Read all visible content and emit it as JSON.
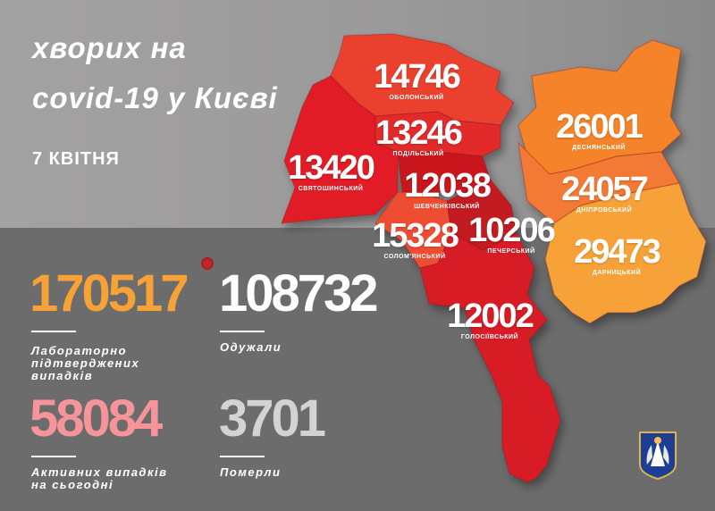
{
  "header": {
    "title_line1": "хворих на",
    "title_line2": "covid-19 у Києві",
    "date": "7 КВІТНЯ"
  },
  "districts": [
    {
      "name": "ОБОЛОНСЬКИЙ",
      "cases": "14746",
      "color": "#ea3f2e"
    },
    {
      "name": "ПОДІЛЬСЬКИЙ",
      "cases": "13246",
      "color": "#e32a2a"
    },
    {
      "name": "СВЯТОШИНСЬКИЙ",
      "cases": "13420",
      "color": "#e11f26"
    },
    {
      "name": "ШЕВЧЕНКІВСЬКИЙ",
      "cases": "12038",
      "color": "#c9161f"
    },
    {
      "name": "СОЛОМ'ЯНСЬКИЙ",
      "cases": "15328",
      "color": "#ee4d31"
    },
    {
      "name": "ПЕЧЕРСЬКИЙ",
      "cases": "10206",
      "color": "#c21b22"
    },
    {
      "name": "ГОЛОСІЇВСЬКИЙ",
      "cases": "12002",
      "color": "#d81e26"
    },
    {
      "name": "ДЕСНЯНСЬКИЙ",
      "cases": "26001",
      "color": "#f5832b"
    },
    {
      "name": "ДНІПРОВСЬКИЙ",
      "cases": "24057",
      "color": "#f27a34"
    },
    {
      "name": "ДАРНИЦЬКИЙ",
      "cases": "29473",
      "color": "#f7a237"
    }
  ],
  "stats": {
    "confirmed": {
      "value": "170517",
      "label_1": "Лабораторно",
      "label_2": "підтверджених",
      "label_3": "випадків",
      "color": "#f7a237"
    },
    "recovered": {
      "value": "108732",
      "label_1": "Одужали",
      "color": "#ffffff"
    },
    "active": {
      "value": "58084",
      "label_1": "Активних випадків",
      "label_2": "на сьогодні",
      "color": "#f7949a"
    },
    "deaths": {
      "value": "3701",
      "label_1": "Померли",
      "color": "#d3d3d3"
    }
  },
  "icons": {
    "virus": "virus-icon",
    "emblem": "kyiv-coat-of-arms"
  }
}
